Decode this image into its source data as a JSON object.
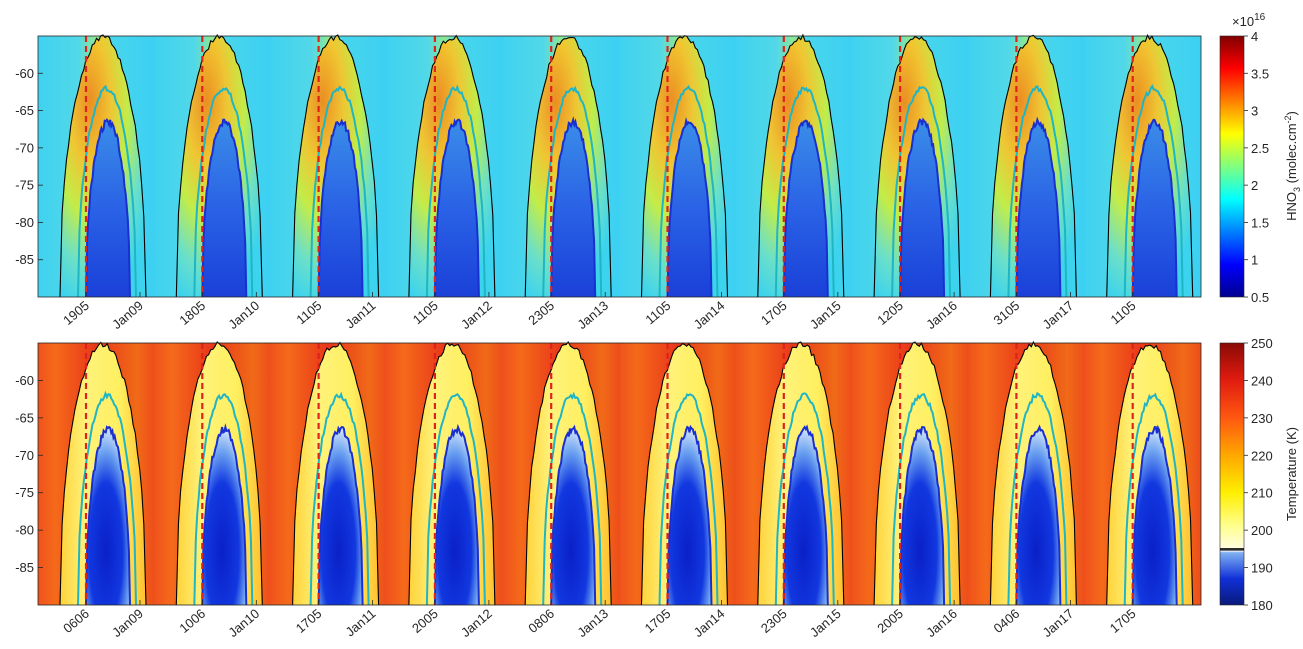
{
  "chart_data": [
    {
      "type": "heatmap",
      "panel": "top",
      "quantity": "HNO3 total column",
      "colorbar": {
        "label_main": "HNO",
        "label_sub": "3",
        "label_units": " (molec.cm",
        "label_exp": "-2",
        "label_close": ")",
        "exponent_base": "×10",
        "exponent_power": "16",
        "range": [
          0.5,
          4
        ],
        "ticks": [
          "4",
          "3.5",
          "3",
          "2.5",
          "2",
          "1.5",
          "1",
          "0.5"
        ],
        "colormap": "jet"
      },
      "y_ticks": [
        "-60",
        "-65",
        "-70",
        "-75",
        "-80",
        "-85"
      ],
      "ylim": [
        -90,
        -55
      ],
      "x_ticks": [
        {
          "label": "1905",
          "kind": "onset",
          "season": 0
        },
        {
          "label": "Jan09",
          "kind": "year",
          "season": 0
        },
        {
          "label": "1805",
          "kind": "onset",
          "season": 1
        },
        {
          "label": "Jan10",
          "kind": "year",
          "season": 1
        },
        {
          "label": "1105",
          "kind": "onset",
          "season": 2
        },
        {
          "label": "Jan11",
          "kind": "year",
          "season": 2
        },
        {
          "label": "1105",
          "kind": "onset",
          "season": 3
        },
        {
          "label": "Jan12",
          "kind": "year",
          "season": 3
        },
        {
          "label": "2305",
          "kind": "onset",
          "season": 4
        },
        {
          "label": "Jan13",
          "kind": "year",
          "season": 4
        },
        {
          "label": "1105",
          "kind": "onset",
          "season": 5
        },
        {
          "label": "Jan14",
          "kind": "year",
          "season": 5
        },
        {
          "label": "1705",
          "kind": "onset",
          "season": 6
        },
        {
          "label": "Jan15",
          "kind": "year",
          "season": 6
        },
        {
          "label": "1205",
          "kind": "onset",
          "season": 7
        },
        {
          "label": "Jan16",
          "kind": "year",
          "season": 7
        },
        {
          "label": "3105",
          "kind": "onset",
          "season": 8
        },
        {
          "label": "Jan17",
          "kind": "year",
          "season": 8
        },
        {
          "label": "1105",
          "kind": "onset",
          "season": 9
        }
      ],
      "lines": {
        "outer": "#000000",
        "middle": "#1fb5c4",
        "inner": "#1a2fd0",
        "marker": "#e0221c"
      }
    },
    {
      "type": "heatmap",
      "panel": "bottom",
      "quantity": "Temperature",
      "colorbar": {
        "label": "Temperature (K)",
        "range": [
          180,
          250
        ],
        "ticks": [
          "250",
          "240",
          "230",
          "220",
          "210",
          "200",
          "190",
          "180"
        ],
        "colormap": "custom-temperature",
        "threshold_line": 195
      },
      "y_ticks": [
        "-60",
        "-65",
        "-70",
        "-75",
        "-80",
        "-85"
      ],
      "ylim": [
        -90,
        -55
      ],
      "x_ticks": [
        {
          "label": "0606",
          "kind": "onset",
          "season": 0
        },
        {
          "label": "Jan09",
          "kind": "year",
          "season": 0
        },
        {
          "label": "1006",
          "kind": "onset",
          "season": 1
        },
        {
          "label": "Jan10",
          "kind": "year",
          "season": 1
        },
        {
          "label": "1705",
          "kind": "onset",
          "season": 2
        },
        {
          "label": "Jan11",
          "kind": "year",
          "season": 2
        },
        {
          "label": "2005",
          "kind": "onset",
          "season": 3
        },
        {
          "label": "Jan12",
          "kind": "year",
          "season": 3
        },
        {
          "label": "0806",
          "kind": "onset",
          "season": 4
        },
        {
          "label": "Jan13",
          "kind": "year",
          "season": 4
        },
        {
          "label": "1705",
          "kind": "onset",
          "season": 5
        },
        {
          "label": "Jan14",
          "kind": "year",
          "season": 5
        },
        {
          "label": "2305",
          "kind": "onset",
          "season": 6
        },
        {
          "label": "Jan15",
          "kind": "year",
          "season": 6
        },
        {
          "label": "2005",
          "kind": "onset",
          "season": 7
        },
        {
          "label": "Jan16",
          "kind": "year",
          "season": 7
        },
        {
          "label": "0406",
          "kind": "onset",
          "season": 8
        },
        {
          "label": "Jan17",
          "kind": "year",
          "season": 8
        },
        {
          "label": "1705",
          "kind": "onset",
          "season": 9
        }
      ],
      "lines": {
        "outer": "#000000",
        "middle": "#1fb5c4",
        "inner": "#1a2fd0",
        "marker": "#e0221c"
      }
    }
  ]
}
